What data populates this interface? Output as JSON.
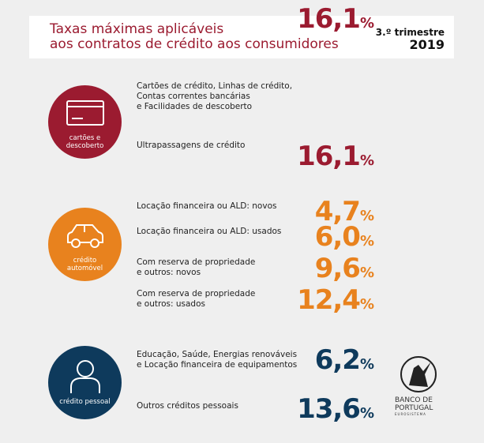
{
  "header": {
    "title_line1": "Taxas máximas aplicáveis",
    "title_line2": "aos contratos de crédito aos consumidores",
    "period": "3.º trimestre",
    "year": "2019"
  },
  "colors": {
    "red": "#9b1b30",
    "orange": "#e8821e",
    "navy": "#0e3a5c"
  },
  "sections": [
    {
      "icon": "credit-card-icon",
      "label_line1": "cartões e",
      "label_line2": "descoberto",
      "rows": [
        {
          "lines": [
            "Cartões de crédito, Linhas de crédito,",
            "Contas correntes bancárias",
            "e Facilidades de descoberto"
          ],
          "value": "16,1",
          "unit": "%"
        },
        {
          "lines": [
            "Ultrapassagens de crédito"
          ],
          "value": "16,1",
          "unit": "%"
        }
      ]
    },
    {
      "icon": "car-icon",
      "label_line1": "crédito",
      "label_line2": "automóvel",
      "rows": [
        {
          "lines": [
            "Locação financeira ou ALD: novos"
          ],
          "value": "4,7",
          "unit": "%"
        },
        {
          "lines": [
            "Locação financeira ou ALD: usados"
          ],
          "value": "6,0",
          "unit": "%"
        },
        {
          "lines": [
            "Com reserva de propriedade",
            "e outros: novos"
          ],
          "value": "9,6",
          "unit": "%"
        },
        {
          "lines": [
            "Com reserva de propriedade",
            "e outros: usados"
          ],
          "value": "12,4",
          "unit": "%"
        }
      ]
    },
    {
      "icon": "person-icon",
      "label_line1": "crédito pessoal",
      "label_line2": "",
      "rows": [
        {
          "lines": [
            "Educação, Saúde, Energias renováveis",
            "e Locação financeira de equipamentos"
          ],
          "value": "6,2",
          "unit": "%"
        },
        {
          "lines": [
            "Outros créditos pessoais"
          ],
          "value": "13,6",
          "unit": "%"
        }
      ]
    }
  ],
  "logo": {
    "line1": "BANCO DE",
    "line2": "PORTUGAL",
    "line3": "EUROSISTEMA"
  }
}
